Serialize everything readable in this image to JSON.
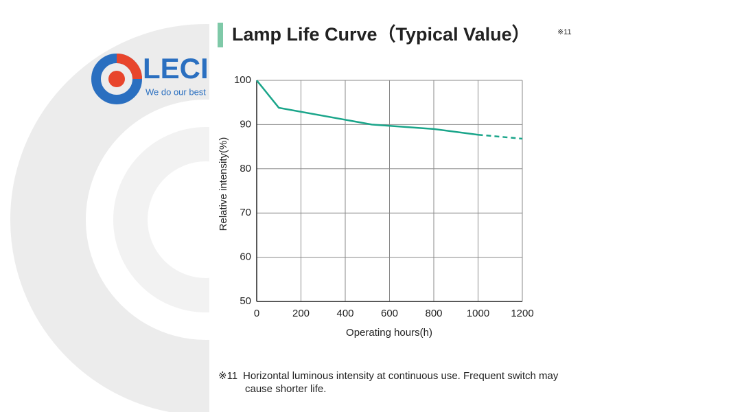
{
  "chart_data": {
    "type": "line",
    "title": "Lamp Life Curve（Typical Value）",
    "title_note": "※11",
    "x_label": "Operating hours(h)",
    "y_label": "Relative intensity(%)",
    "x": [
      0,
      100,
      520,
      800,
      1000,
      1200
    ],
    "series": [
      {
        "color": "#1aa58a",
        "dashed": false,
        "values": [
          100,
          93.8,
          90,
          89,
          87.7,
          null
        ]
      },
      {
        "color": "#1aa58a",
        "dashed": true,
        "values": [
          null,
          null,
          null,
          null,
          87.7,
          86.8
        ]
      }
    ],
    "xlim": [
      0,
      1200
    ],
    "xticks": [
      0,
      200,
      400,
      600,
      800,
      1000,
      1200
    ],
    "ylim": [
      50,
      100
    ],
    "yticks": [
      50,
      60,
      70,
      80,
      90,
      100
    ],
    "grid": true,
    "footnote": {
      "mark": "※11",
      "lines": [
        "Horizontal luminous intensity at continuous use. Frequent switch may",
        "cause shorter life."
      ]
    }
  },
  "logo": {
    "name": "LECI",
    "slogan": "We do our best"
  }
}
